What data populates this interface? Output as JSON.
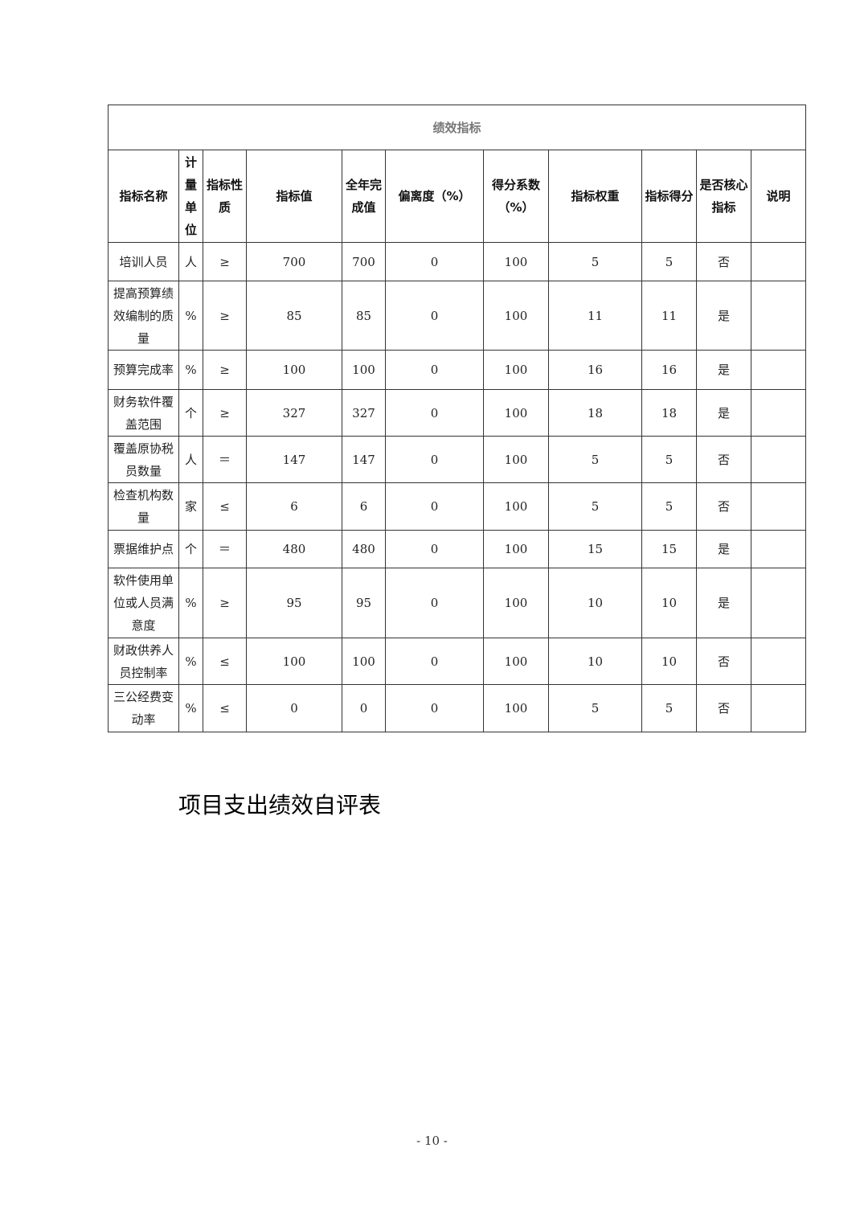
{
  "table": {
    "title": "绩效指标",
    "headers": [
      "指标名称",
      "计量单位",
      "指标性质",
      "指标值",
      "全年完成值",
      "偏离度（%）",
      "得分系数（%）",
      "指标权重",
      "指标得分",
      "是否核心指标",
      "说明"
    ],
    "rows": [
      [
        "培训人员",
        "人",
        "≥",
        "700",
        "700",
        "0",
        "100",
        "5",
        "5",
        "否",
        ""
      ],
      [
        "提高预算绩效编制的质量",
        "%",
        "≥",
        "85",
        "85",
        "0",
        "100",
        "11",
        "11",
        "是",
        ""
      ],
      [
        "预算完成率",
        "%",
        "≥",
        "100",
        "100",
        "0",
        "100",
        "16",
        "16",
        "是",
        ""
      ],
      [
        "财务软件覆盖范围",
        "个",
        "≥",
        "327",
        "327",
        "0",
        "100",
        "18",
        "18",
        "是",
        ""
      ],
      [
        "覆盖原协税员数量",
        "人",
        "＝",
        "147",
        "147",
        "0",
        "100",
        "5",
        "5",
        "否",
        ""
      ],
      [
        "检查机构数量",
        "家",
        "≤",
        "6",
        "6",
        "0",
        "100",
        "5",
        "5",
        "否",
        ""
      ],
      [
        "票据维护点",
        "个",
        "＝",
        "480",
        "480",
        "0",
        "100",
        "15",
        "15",
        "是",
        ""
      ],
      [
        "软件使用单位或人员满意度",
        "%",
        "≥",
        "95",
        "95",
        "0",
        "100",
        "10",
        "10",
        "是",
        ""
      ],
      [
        "财政供养人员控制率",
        "%",
        "≤",
        "100",
        "100",
        "0",
        "100",
        "10",
        "10",
        "否",
        ""
      ],
      [
        "三公经费变动率",
        "%",
        "≤",
        "0",
        "0",
        "0",
        "100",
        "5",
        "5",
        "否",
        ""
      ]
    ]
  },
  "section_title": "项目支出绩效自评表",
  "page_number": "- 10 -"
}
